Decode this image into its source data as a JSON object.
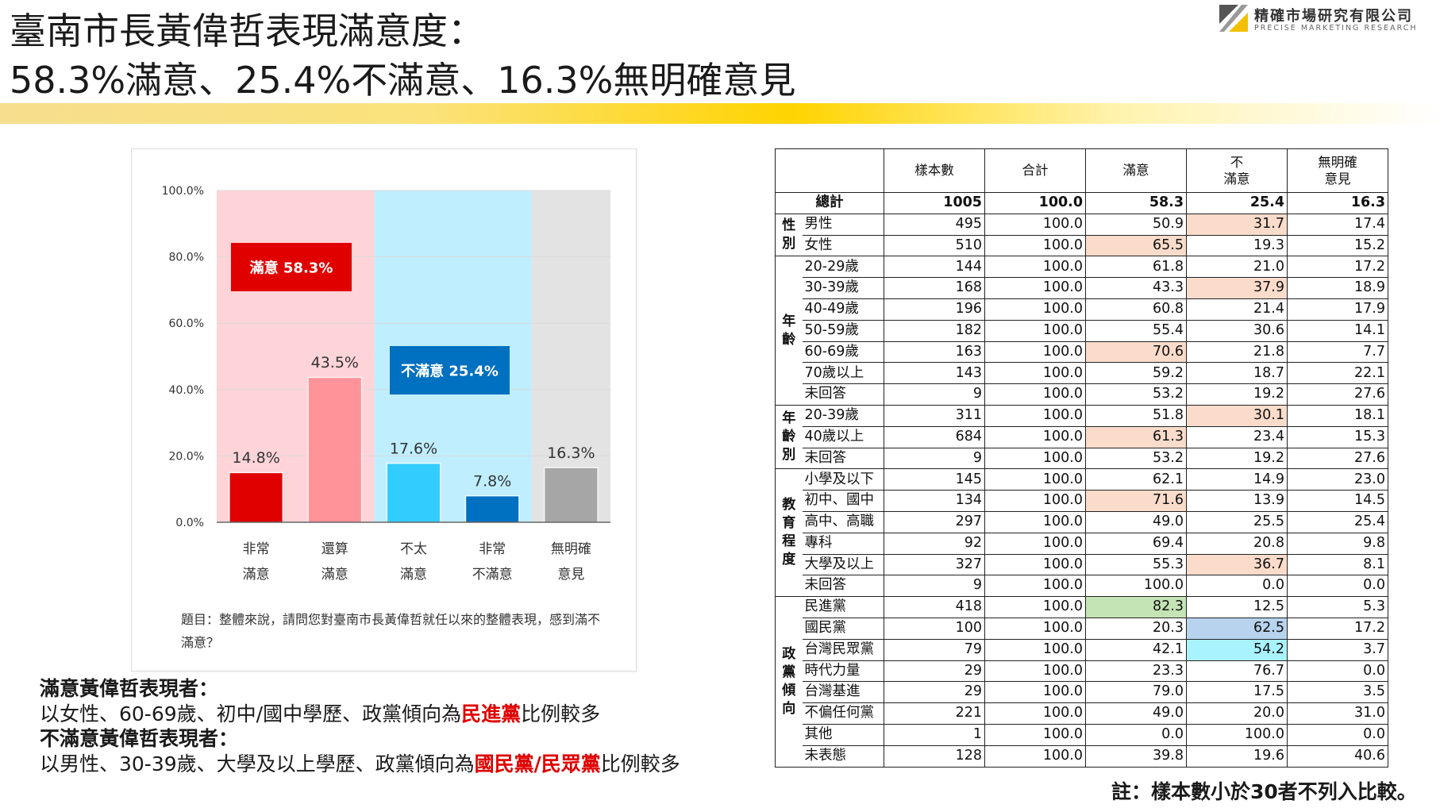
{
  "page": {
    "title_line1": "臺南市長黃偉哲表現滿意度：",
    "title_line2": "58.3%滿意、25.4%不滿意、16.3%無明確意見",
    "logo_cn": "精確市場研究有限公司",
    "logo_en": "PRECISE MARKETING RESEARCH",
    "footnote": "註：樣本數小於30者不列入比較。"
  },
  "question": "題目：整體來說，請問您對臺南市長黃偉哲就任以來的整體表現，感到滿不滿意？",
  "summary": {
    "sat_heading": "滿意黃偉哲表現者：",
    "sat_text": "以女性、60-69歲、初中/國中學歷、政黨傾向為",
    "sat_party": "民進黨",
    "sat_tail": "比例較多",
    "dis_heading": "不滿意黃偉哲表現者：",
    "dis_text": "以男性、30-39歲、大學及以上學歷、政黨傾向為",
    "dis_party": "國民黨/民眾黨",
    "dis_tail": "比例較多"
  },
  "chart_data": {
    "type": "bar",
    "categories": [
      [
        "非常",
        "滿意"
      ],
      [
        "還算",
        "滿意"
      ],
      [
        "不太",
        "滿意"
      ],
      [
        "非常",
        "不滿意"
      ],
      [
        "無明確",
        "意見"
      ]
    ],
    "values": [
      14.8,
      43.5,
      17.6,
      7.8,
      16.3
    ],
    "value_labels": [
      "14.8%",
      "43.5%",
      "17.6%",
      "7.8%",
      "16.3%"
    ],
    "ylim": [
      0,
      100
    ],
    "yticks": [
      0,
      20,
      40,
      60,
      80,
      100
    ],
    "ytick_labels": [
      "0.0%",
      "20.0%",
      "40.0%",
      "60.0%",
      "80.0%",
      "100.0%"
    ],
    "bar_colors": [
      "#e00000",
      "#ff9399",
      "#33ccff",
      "#0070c0",
      "#a6a6a6"
    ],
    "groups": [
      {
        "label": "滿意 58.3%",
        "span": [
          0,
          1
        ],
        "bg": "#ffd4d8",
        "box": "#e00000"
      },
      {
        "label": "不滿意 25.4%",
        "span": [
          2,
          3
        ],
        "bg": "#bfeeff",
        "box": "#0070c0"
      },
      {
        "label": "",
        "span": [
          4,
          4
        ],
        "bg": "#e3e3e3",
        "box": ""
      }
    ],
    "grid": true
  },
  "table": {
    "headers": [
      "樣本數",
      "合計",
      "滿意",
      "不\n滿意",
      "無明確\n意見"
    ],
    "total": {
      "label": "總計",
      "values": [
        "1005",
        "100.0",
        "58.3",
        "25.4",
        "16.3"
      ]
    },
    "groups": [
      {
        "name": "性別",
        "rows": [
          {
            "label": "男性",
            "values": [
              "495",
              "100.0",
              "50.9",
              "31.7",
              "17.4"
            ],
            "hl": {
              "3": "orange"
            }
          },
          {
            "label": "女性",
            "values": [
              "510",
              "100.0",
              "65.5",
              "19.3",
              "15.2"
            ],
            "hl": {
              "2": "orange"
            }
          }
        ]
      },
      {
        "name": "年齡",
        "rows": [
          {
            "label": "20-29歲",
            "values": [
              "144",
              "100.0",
              "61.8",
              "21.0",
              "17.2"
            ]
          },
          {
            "label": "30-39歲",
            "values": [
              "168",
              "100.0",
              "43.3",
              "37.9",
              "18.9"
            ],
            "hl": {
              "3": "orange"
            }
          },
          {
            "label": "40-49歲",
            "values": [
              "196",
              "100.0",
              "60.8",
              "21.4",
              "17.9"
            ]
          },
          {
            "label": "50-59歲",
            "values": [
              "182",
              "100.0",
              "55.4",
              "30.6",
              "14.1"
            ]
          },
          {
            "label": "60-69歲",
            "values": [
              "163",
              "100.0",
              "70.6",
              "21.8",
              "7.7"
            ],
            "hl": {
              "2": "orange"
            }
          },
          {
            "label": "70歲以上",
            "values": [
              "143",
              "100.0",
              "59.2",
              "18.7",
              "22.1"
            ]
          },
          {
            "label": "未回答",
            "values": [
              "9",
              "100.0",
              "53.2",
              "19.2",
              "27.6"
            ]
          }
        ]
      },
      {
        "name": "年齡別",
        "rows": [
          {
            "label": "20-39歲",
            "values": [
              "311",
              "100.0",
              "51.8",
              "30.1",
              "18.1"
            ],
            "hl": {
              "3": "orange"
            }
          },
          {
            "label": "40歲以上",
            "values": [
              "684",
              "100.0",
              "61.3",
              "23.4",
              "15.3"
            ],
            "hl": {
              "2": "orange"
            }
          },
          {
            "label": "未回答",
            "values": [
              "9",
              "100.0",
              "53.2",
              "19.2",
              "27.6"
            ]
          }
        ]
      },
      {
        "name": "教育程度",
        "rows": [
          {
            "label": "小學及以下",
            "values": [
              "145",
              "100.0",
              "62.1",
              "14.9",
              "23.0"
            ]
          },
          {
            "label": "初中、國中",
            "values": [
              "134",
              "100.0",
              "71.6",
              "13.9",
              "14.5"
            ],
            "hl": {
              "2": "orange"
            }
          },
          {
            "label": "高中、高職",
            "values": [
              "297",
              "100.0",
              "49.0",
              "25.5",
              "25.4"
            ]
          },
          {
            "label": "專科",
            "values": [
              "92",
              "100.0",
              "69.4",
              "20.8",
              "9.8"
            ]
          },
          {
            "label": "大學及以上",
            "values": [
              "327",
              "100.0",
              "55.3",
              "36.7",
              "8.1"
            ],
            "hl": {
              "3": "orange"
            }
          },
          {
            "label": "未回答",
            "values": [
              "9",
              "100.0",
              "100.0",
              "0.0",
              "0.0"
            ]
          }
        ]
      },
      {
        "name": "政黨傾向",
        "rows": [
          {
            "label": "民進黨",
            "values": [
              "418",
              "100.0",
              "82.3",
              "12.5",
              "5.3"
            ],
            "hl": {
              "2": "green"
            }
          },
          {
            "label": "國民黨",
            "values": [
              "100",
              "100.0",
              "20.3",
              "62.5",
              "17.2"
            ],
            "hl": {
              "3": "blue"
            }
          },
          {
            "label": "台灣民眾黨",
            "values": [
              "79",
              "100.0",
              "42.1",
              "54.2",
              "3.7"
            ],
            "hl": {
              "3": "cyan"
            }
          },
          {
            "label": "時代力量",
            "values": [
              "29",
              "100.0",
              "23.3",
              "76.7",
              "0.0"
            ]
          },
          {
            "label": "台灣基進",
            "values": [
              "29",
              "100.0",
              "79.0",
              "17.5",
              "3.5"
            ]
          },
          {
            "label": "不偏任何黨",
            "values": [
              "221",
              "100.0",
              "49.0",
              "20.0",
              "31.0"
            ]
          },
          {
            "label": "其他",
            "values": [
              "1",
              "100.0",
              "0.0",
              "100.0",
              "0.0"
            ]
          },
          {
            "label": "未表態",
            "values": [
              "128",
              "100.0",
              "39.8",
              "19.6",
              "40.6"
            ]
          }
        ]
      }
    ]
  }
}
